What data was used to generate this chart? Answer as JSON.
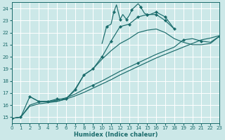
{
  "bg_color": "#cce8e8",
  "line_color": "#1a6b6b",
  "grid_color": "#ffffff",
  "xlabel": "Humidex (Indice chaleur)",
  "xlim": [
    0,
    23
  ],
  "ylim": [
    14.5,
    24.5
  ],
  "xticks": [
    0,
    1,
    2,
    3,
    4,
    5,
    6,
    7,
    8,
    9,
    10,
    11,
    12,
    13,
    14,
    15,
    16,
    17,
    18,
    19,
    20,
    21,
    22,
    23
  ],
  "yticks": [
    15,
    16,
    17,
    18,
    19,
    20,
    21,
    22,
    23,
    24
  ],
  "line_A_x": [
    0,
    1,
    2,
    3,
    4,
    5,
    6,
    7,
    8,
    9,
    10,
    11,
    12,
    13,
    14,
    15,
    16,
    17,
    18
  ],
  "line_A_y": [
    14.9,
    15.0,
    16.7,
    16.3,
    16.3,
    16.5,
    16.5,
    17.3,
    18.5,
    19.0,
    20.0,
    21.3,
    22.5,
    22.7,
    23.3,
    23.5,
    23.5,
    23.0,
    22.3
  ],
  "line_A_markers_at": [
    0,
    1,
    2,
    3,
    4,
    5,
    6,
    7,
    8,
    9,
    10,
    11,
    12,
    13,
    14,
    15,
    16,
    17,
    18
  ],
  "line_B_x": [
    10,
    10.5,
    11,
    11.3,
    11.6,
    12,
    12.3,
    12.7,
    13,
    13.3,
    14,
    14.3,
    14.7,
    15,
    15.3,
    16,
    16.5,
    17,
    18
  ],
  "line_B_y": [
    21.1,
    22.5,
    22.7,
    23.7,
    24.3,
    23.1,
    23.5,
    23.1,
    23.4,
    23.9,
    24.4,
    24.1,
    23.6,
    23.5,
    23.5,
    23.7,
    23.5,
    23.3,
    22.3
  ],
  "line_B_markers_at": [
    1,
    3,
    5,
    7,
    9,
    11,
    13,
    15,
    17
  ],
  "line_C_x": [
    2,
    3,
    4,
    5,
    6,
    7,
    8,
    9,
    10,
    11,
    12,
    13,
    14,
    15,
    16,
    17,
    18,
    19,
    20,
    21,
    22,
    23
  ],
  "line_C_y": [
    16.7,
    16.3,
    16.3,
    16.3,
    16.5,
    17.2,
    18.5,
    19.0,
    19.8,
    20.5,
    21.1,
    21.5,
    22.0,
    22.2,
    22.3,
    22.0,
    21.5,
    21.2,
    21.0,
    21.0,
    21.1,
    21.7
  ],
  "line_D_x": [
    0,
    1,
    2,
    3,
    4,
    5,
    6,
    7,
    8,
    9,
    10,
    11,
    12,
    13,
    14,
    15,
    16,
    17,
    18,
    19,
    20,
    21,
    22,
    23
  ],
  "line_D_y": [
    14.9,
    15.0,
    15.9,
    16.1,
    16.2,
    16.3,
    16.5,
    16.75,
    17.05,
    17.4,
    17.75,
    18.1,
    18.5,
    18.85,
    19.2,
    19.55,
    19.9,
    20.2,
    20.5,
    20.8,
    21.1,
    21.4,
    21.55,
    21.75
  ],
  "line_E_x": [
    0,
    1,
    2,
    3,
    4,
    5,
    6,
    7,
    8,
    9,
    10,
    11,
    12,
    13,
    14,
    15,
    16,
    17,
    18,
    19,
    20,
    21,
    22,
    23
  ],
  "line_E_y": [
    14.9,
    15.0,
    16.0,
    16.25,
    16.3,
    16.4,
    16.6,
    16.9,
    17.3,
    17.65,
    18.0,
    18.4,
    18.8,
    19.15,
    19.5,
    19.85,
    20.2,
    20.5,
    20.8,
    21.4,
    21.5,
    21.3,
    21.2,
    21.7
  ],
  "line_E_markers_at": [
    9,
    14,
    19,
    21,
    23
  ]
}
